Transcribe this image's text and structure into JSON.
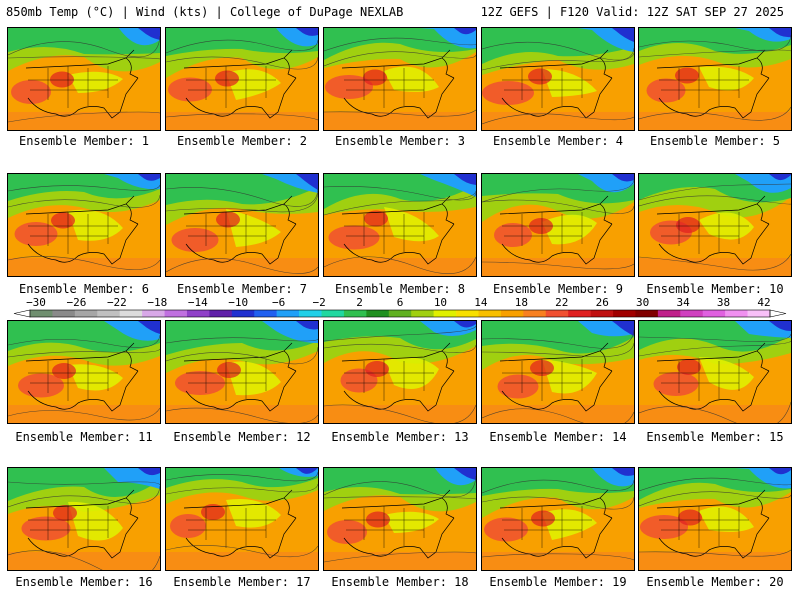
{
  "header": {
    "left_title": "850mb Temp (°C) | Wind (kts) | College of DuPage NEXLAB",
    "right_title": "12Z GEFS | F120 Valid: 12Z SAT SEP 27 2025"
  },
  "members": [
    "Ensemble Member: 1",
    "Ensemble Member: 2",
    "Ensemble Member: 3",
    "Ensemble Member: 4",
    "Ensemble Member: 5",
    "Ensemble Member: 6",
    "Ensemble Member: 7",
    "Ensemble Member: 8",
    "Ensemble Member: 9",
    "Ensemble Member: 10",
    "Ensemble Member: 11",
    "Ensemble Member: 12",
    "Ensemble Member: 13",
    "Ensemble Member: 14",
    "Ensemble Member: 15",
    "Ensemble Member: 16",
    "Ensemble Member: 17",
    "Ensemble Member: 18",
    "Ensemble Member: 19",
    "Ensemble Member: 20"
  ],
  "colorbar": {
    "ticks": [
      "−30",
      "−26",
      "−22",
      "−18",
      "−14",
      "−10",
      "−6",
      "−2",
      "2",
      "6",
      "10",
      "14",
      "18",
      "22",
      "26",
      "30",
      "34",
      "38",
      "42"
    ],
    "colors": [
      "#6f8f6f",
      "#8a8a8a",
      "#a6a6a6",
      "#c0c0c0",
      "#dcdcdc",
      "#d8a8e8",
      "#c070e0",
      "#9040c8",
      "#6020a8",
      "#2030d0",
      "#2060f0",
      "#20a0f8",
      "#20d0e8",
      "#20d8a0",
      "#30c050",
      "#209020",
      "#60b020",
      "#a0d010",
      "#e0f000",
      "#f8e000",
      "#f8c000",
      "#f8a000",
      "#f88020",
      "#f05030",
      "#e02020",
      "#c01010",
      "#a00000",
      "#800000",
      "#c0208a",
      "#d040c0",
      "#e060e0",
      "#f090f0",
      "#f8c0f8"
    ]
  }
}
